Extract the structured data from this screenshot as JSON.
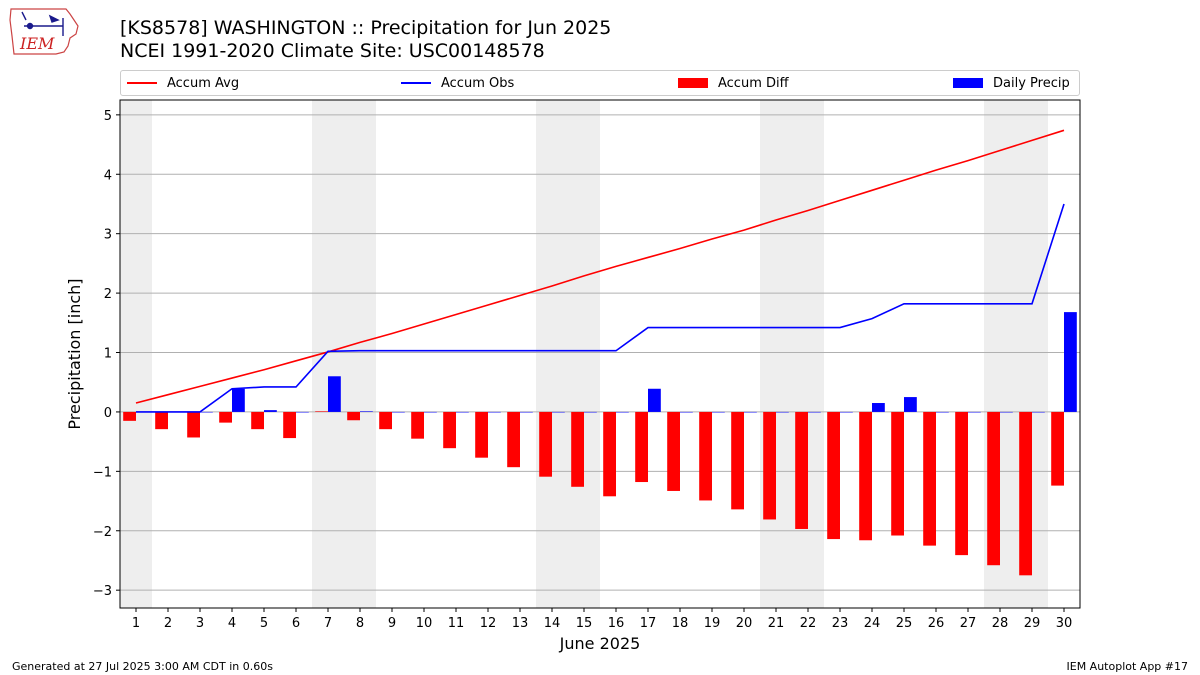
{
  "header": {
    "title_line1": "[KS8578] WASHINGTON :: Precipitation for Jun 2025",
    "title_line2": "NCEI 1991-2020 Climate Site: USC00148578"
  },
  "logo": {
    "text": "IEM"
  },
  "legend": {
    "placement": "top",
    "items": [
      {
        "label": "Accum Avg",
        "kind": "line",
        "color": "#ff0000"
      },
      {
        "label": "Accum Obs",
        "kind": "line",
        "color": "#0000ff"
      },
      {
        "label": "Accum Diff",
        "kind": "patch",
        "color": "#ff0000"
      },
      {
        "label": "Daily Precip",
        "kind": "patch",
        "color": "#0000ff"
      }
    ]
  },
  "footer": {
    "left": "Generated at 27 Jul 2025 3:00 AM CDT in 0.60s",
    "right": "IEM Autoplot App #17"
  },
  "chart_data": {
    "type": "bar",
    "xlabel": "June 2025",
    "ylabel": "Precipitation [inch]",
    "ylim": [
      -3.3,
      5.25
    ],
    "yticks": [
      -3,
      -2,
      -1,
      0,
      1,
      2,
      3,
      4,
      5
    ],
    "ytick_labels": [
      "−3",
      "−2",
      "−1",
      "0",
      "1",
      "2",
      "3",
      "4",
      "5"
    ],
    "grid": "horizontal",
    "weekend_shading_days": [
      1,
      7,
      8,
      14,
      15,
      21,
      22,
      28,
      29
    ],
    "categories": [
      "1",
      "2",
      "3",
      "4",
      "5",
      "6",
      "7",
      "8",
      "9",
      "10",
      "11",
      "12",
      "13",
      "14",
      "15",
      "16",
      "17",
      "18",
      "19",
      "20",
      "21",
      "22",
      "23",
      "24",
      "25",
      "26",
      "27",
      "28",
      "29",
      "30"
    ],
    "series": [
      {
        "name": "Accum Avg",
        "kind": "line",
        "color": "#ff0000",
        "values": [
          0.15,
          0.29,
          0.43,
          0.57,
          0.71,
          0.86,
          1.01,
          1.17,
          1.32,
          1.48,
          1.64,
          1.8,
          1.96,
          2.12,
          2.29,
          2.45,
          2.6,
          2.75,
          2.91,
          3.06,
          3.23,
          3.39,
          3.56,
          3.73,
          3.9,
          4.07,
          4.23,
          4.4,
          4.57,
          4.74
        ]
      },
      {
        "name": "Accum Obs",
        "kind": "line",
        "color": "#0000ff",
        "values": [
          0.0,
          0.0,
          0.0,
          0.39,
          0.42,
          0.42,
          1.02,
          1.03,
          1.03,
          1.03,
          1.03,
          1.03,
          1.03,
          1.03,
          1.03,
          1.03,
          1.42,
          1.42,
          1.42,
          1.42,
          1.42,
          1.42,
          1.42,
          1.57,
          1.82,
          1.82,
          1.82,
          1.82,
          1.82,
          3.5
        ]
      },
      {
        "name": "Accum Diff",
        "kind": "bar",
        "color": "#ff0000",
        "offset": -0.2,
        "values": [
          -0.15,
          -0.29,
          -0.43,
          -0.18,
          -0.29,
          -0.44,
          0.01,
          -0.14,
          -0.29,
          -0.45,
          -0.61,
          -0.77,
          -0.93,
          -1.09,
          -1.26,
          -1.42,
          -1.18,
          -1.33,
          -1.49,
          -1.64,
          -1.81,
          -1.97,
          -2.14,
          -2.16,
          -2.08,
          -2.25,
          -2.41,
          -2.58,
          -2.75,
          -1.24
        ]
      },
      {
        "name": "Daily Precip",
        "kind": "bar",
        "color": "#0000ff",
        "offset": 0.2,
        "values": [
          0,
          0,
          0,
          0.39,
          0.03,
          0,
          0.6,
          0.01,
          0,
          0,
          0,
          0,
          0,
          0,
          0,
          0,
          0.39,
          0,
          0,
          0,
          0,
          0,
          0,
          0.15,
          0.25,
          0,
          0,
          0,
          0,
          1.68
        ]
      }
    ]
  }
}
